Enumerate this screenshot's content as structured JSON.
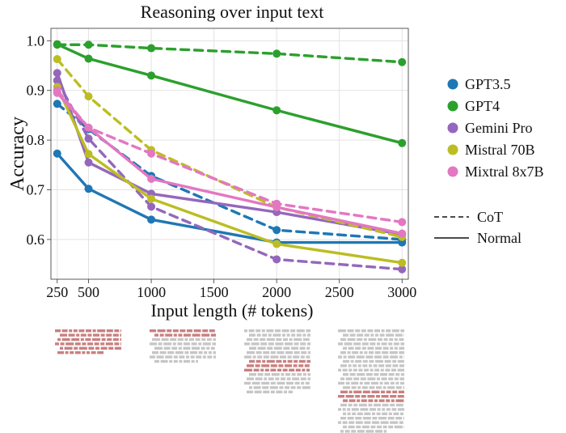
{
  "chart_data": {
    "type": "line",
    "title": "Reasoning over input text",
    "xlabel": "Input length (# tokens)",
    "ylabel": "Accuracy",
    "x": [
      250,
      500,
      1000,
      2000,
      3000
    ],
    "x_ticks": [
      250,
      500,
      1000,
      1500,
      2000,
      2500,
      3000
    ],
    "y_ticks": [
      0.6,
      0.7,
      0.8,
      0.9,
      1.0
    ],
    "xlim": [
      200,
      3050
    ],
    "ylim": [
      0.52,
      1.025
    ],
    "grid": true,
    "legend_position": "right",
    "series": [
      {
        "name": "GPT3.5",
        "color": "#1f77b4",
        "style": "Normal",
        "values": [
          0.773,
          0.702,
          0.64,
          0.594,
          0.594
        ]
      },
      {
        "name": "GPT3.5",
        "color": "#1f77b4",
        "style": "CoT",
        "values": [
          0.873,
          0.822,
          0.728,
          0.619,
          0.6
        ]
      },
      {
        "name": "GPT4",
        "color": "#2ca02c",
        "style": "Normal",
        "values": [
          0.993,
          0.964,
          0.93,
          0.86,
          0.794
        ]
      },
      {
        "name": "GPT4",
        "color": "#2ca02c",
        "style": "CoT",
        "values": [
          0.992,
          0.992,
          0.985,
          0.974,
          0.957
        ]
      },
      {
        "name": "Gemini Pro",
        "color": "#9467bd",
        "style": "Normal",
        "values": [
          0.935,
          0.755,
          0.692,
          0.655,
          0.61
        ]
      },
      {
        "name": "Gemini Pro",
        "color": "#9467bd",
        "style": "CoT",
        "values": [
          0.92,
          0.803,
          0.666,
          0.56,
          0.54
        ]
      },
      {
        "name": "Mistral 70B",
        "color": "#bcbd22",
        "style": "Normal",
        "values": [
          0.907,
          0.772,
          0.682,
          0.591,
          0.553
        ]
      },
      {
        "name": "Mistral 70B",
        "color": "#bcbd22",
        "style": "CoT",
        "values": [
          0.963,
          0.888,
          0.78,
          0.665,
          0.605
        ]
      },
      {
        "name": "Mixtral 8x7B",
        "color": "#e377c2",
        "style": "Normal",
        "values": [
          0.895,
          0.825,
          0.722,
          0.665,
          0.612
        ]
      },
      {
        "name": "Mixtral 8x7B",
        "color": "#e377c2",
        "style": "CoT",
        "values": [
          0.9,
          0.825,
          0.773,
          0.672,
          0.635
        ]
      }
    ],
    "legend_models": [
      {
        "name": "GPT3.5",
        "color": "#1f77b4"
      },
      {
        "name": "GPT4",
        "color": "#2ca02c"
      },
      {
        "name": "Gemini Pro",
        "color": "#9467bd"
      },
      {
        "name": "Mistral 70B",
        "color": "#bcbd22"
      },
      {
        "name": "Mixtral 8x7B",
        "color": "#e377c2"
      }
    ],
    "legend_styles": [
      "CoT",
      "Normal"
    ]
  },
  "illustration": {
    "filler_color": "#c6c6c6",
    "highlight_color": "#c98080"
  }
}
